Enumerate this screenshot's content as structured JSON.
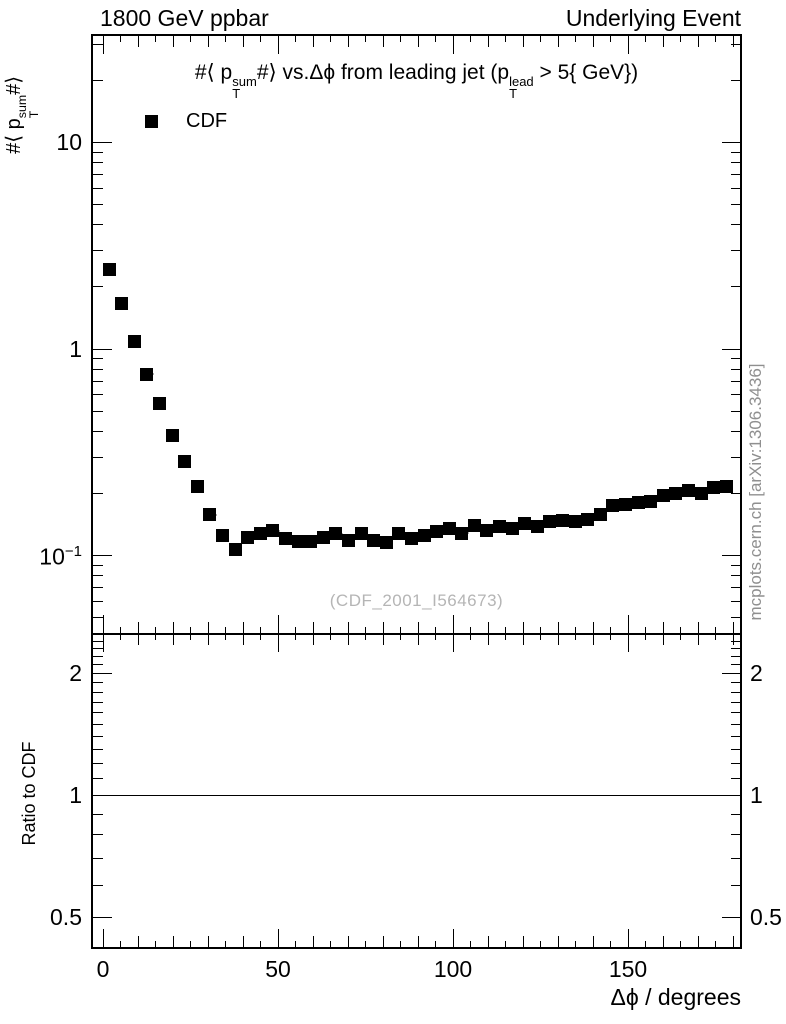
{
  "header": {
    "left": "1800 GeV ppbar",
    "right": "Underlying Event"
  },
  "plot_title": {
    "pre": "#⟨ p",
    "sup1": "sum",
    "sub1": "T",
    "mid": "#⟩ vs.Δϕ from leading jet  (p",
    "sup2": "lead",
    "sub2": "T",
    "post": " > 5{ GeV})"
  },
  "legend": {
    "marker": "filled-square-icon",
    "marker_color": "#000000",
    "label": "CDF"
  },
  "y_axis": {
    "label": {
      "pre": "#⟨ p",
      "sup": "sum",
      "sub": "T",
      "post": "#⟩"
    },
    "ticks": [
      {
        "v": 10,
        "base": "10",
        "exp": ""
      },
      {
        "v": 1,
        "base": "1",
        "exp": ""
      },
      {
        "v": 0.1,
        "base": "10",
        "exp": "−1"
      }
    ]
  },
  "ratio_axis": {
    "label": "Ratio to CDF",
    "ticks": [
      {
        "v": 2,
        "label": "2"
      },
      {
        "v": 1,
        "label": "1"
      },
      {
        "v": 0.5,
        "label": "0.5"
      }
    ]
  },
  "x_axis": {
    "label": "Δϕ / degrees",
    "ticks": [
      {
        "v": 0,
        "label": "0"
      },
      {
        "v": 50,
        "label": "50"
      },
      {
        "v": 100,
        "label": "100"
      },
      {
        "v": 150,
        "label": "150"
      }
    ],
    "small_step": 5,
    "medium_step": 10,
    "major_step": 50
  },
  "watermark": "(CDF_2001_I564673)",
  "side_note": "mcplots.cern.ch [arXiv:1306.3436]",
  "colors": {
    "foreground": "#000000",
    "watermark": "#b5b5b5",
    "side_note": "#8f8f8f"
  },
  "chart_data": {
    "type": "scatter",
    "title": "⟨pT^sum⟩ vs. Δϕ from leading jet (pT^lead > 5 GeV)",
    "xlabel": "Δϕ / degrees",
    "ylabel": "⟨pT^sum⟩",
    "xlim": [
      -3.1,
      182.4
    ],
    "ylim": [
      0.042,
      33
    ],
    "y_scale": "log",
    "ratio_ylim": [
      0.42,
      2.51
    ],
    "ratio_reference": 1,
    "legend_position": "top-left",
    "grid": false,
    "bin_width_deg": 3.6,
    "series": [
      {
        "name": "CDF",
        "marker": "filled-square",
        "color": "#000000",
        "x": [
          1.8,
          5.4,
          9.0,
          12.6,
          16.2,
          19.8,
          23.4,
          27.0,
          30.6,
          34.2,
          37.8,
          41.4,
          45.0,
          48.6,
          52.2,
          55.8,
          59.4,
          63.0,
          66.6,
          70.2,
          73.8,
          77.4,
          81.0,
          84.6,
          88.2,
          91.8,
          95.4,
          99.0,
          102.6,
          106.2,
          109.8,
          113.4,
          117.0,
          120.6,
          124.2,
          127.8,
          131.4,
          135.0,
          138.6,
          142.2,
          145.8,
          149.4,
          153.0,
          156.6,
          160.2,
          163.8,
          167.4,
          171.0,
          174.6,
          178.2
        ],
        "y": [
          2.42,
          1.65,
          1.08,
          0.75,
          0.54,
          0.38,
          0.283,
          0.215,
          0.157,
          0.125,
          0.106,
          0.122,
          0.128,
          0.131,
          0.121,
          0.116,
          0.116,
          0.122,
          0.127,
          0.118,
          0.128,
          0.118,
          0.115,
          0.128,
          0.121,
          0.124,
          0.13,
          0.135,
          0.128,
          0.139,
          0.131,
          0.137,
          0.134,
          0.142,
          0.137,
          0.146,
          0.148,
          0.146,
          0.149,
          0.158,
          0.174,
          0.176,
          0.18,
          0.182,
          0.195,
          0.199,
          0.206,
          0.199,
          0.213,
          0.215
        ]
      }
    ]
  }
}
